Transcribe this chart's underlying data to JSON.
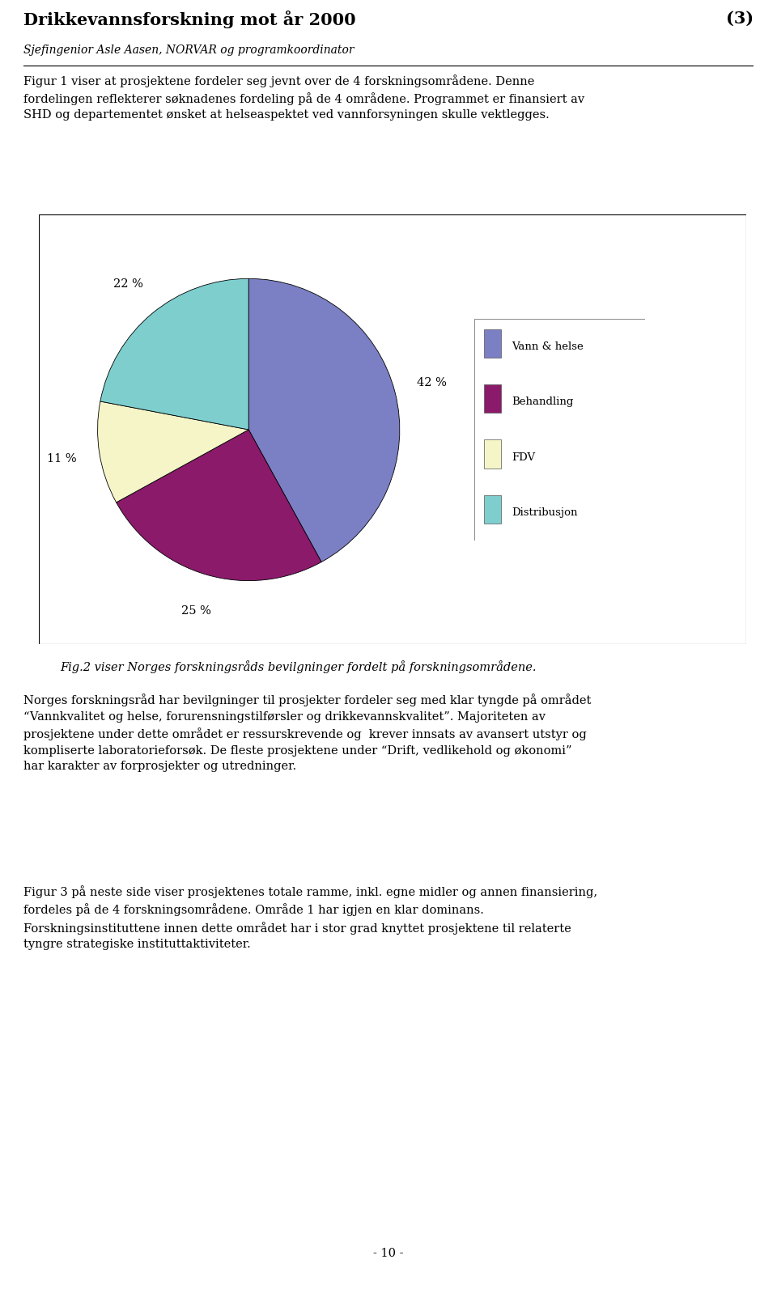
{
  "title": "Drikkevannsforskning mot år 2000",
  "title_number": "(3)",
  "subtitle": "Sjefingenior Asle Aasen, NORVAR og programkoordinator",
  "paragraph1": "Figur 1 viser at prosjektene fordeler seg jevnt over de 4 forskningsområdene. Denne\nfordelingen reflekterer søknadenes fordeling på de 4 områdene. Programmet er finansiert av\nSHD og departementet ønsket at helseaspektet ved vannforsyningen skulle vektlegges.",
  "pie_values": [
    42,
    25,
    11,
    22
  ],
  "pie_labels": [
    "Vann & helse",
    "Behandling",
    "FDV",
    "Distribusjon"
  ],
  "pie_colors": [
    "#7b7fc4",
    "#8b1a6b",
    "#f5f5c8",
    "#7ecece"
  ],
  "pie_pct_labels": [
    "42 %",
    "25 %",
    "11 %",
    "22 %"
  ],
  "fig_caption": "Fig.2 viser Norges forskningsråds bevilgninger fordelt på forskningsområdene.",
  "paragraph2": "Norges forskningsråd har bevilgninger til prosjekter fordeler seg med klar tyngde på området\n“Vannkvalitet og helse, forurensningstilførsler og drikkevannskvalitet”. Majoriteten av\nprosjektene under dette området er ressurskrevende og  krever innsats av avansert utstyr og\nkompliserte laboratorieforsøk. De fleste prosjektene under “Drift, vedlikehold og økonomi”\nhar karakter av forprosjekter og utredninger.",
  "paragraph3": "Figur 3 på neste side viser prosjektenes totale ramme, inkl. egne midler og annen finansiering,\nfordeles på de 4 forskningsområdene. Område 1 har igjen en klar dominans.\nForskningsinstituttene innen dette området har i stor grad knyttet prosjektene til relaterte\ntyngre strategiske instituttaktiviteter.",
  "page_number": "- 10 -",
  "background_color": "#ffffff",
  "text_color": "#000000",
  "font_size_title": 15,
  "font_size_body": 10.5,
  "font_size_caption": 10.5,
  "font_size_legend": 9.5
}
